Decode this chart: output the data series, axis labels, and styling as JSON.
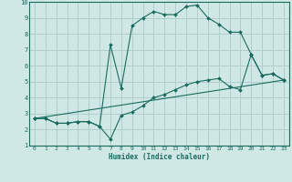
{
  "xlabel": "Humidex (Indice chaleur)",
  "xlim": [
    -0.5,
    23.5
  ],
  "ylim": [
    1,
    10
  ],
  "xticks": [
    0,
    1,
    2,
    3,
    4,
    5,
    6,
    7,
    8,
    9,
    10,
    11,
    12,
    13,
    14,
    15,
    16,
    17,
    18,
    19,
    20,
    21,
    22,
    23
  ],
  "yticks": [
    1,
    2,
    3,
    4,
    5,
    6,
    7,
    8,
    9,
    10
  ],
  "bg_color": "#cfe8e5",
  "grid_color": "#b0cfcc",
  "line_color": "#1a6b5e",
  "line1_x": [
    0,
    1,
    2,
    3,
    4,
    5,
    6,
    7,
    8,
    9,
    10,
    11,
    12,
    13,
    14,
    15,
    16,
    17,
    18,
    19,
    20,
    21,
    22,
    23
  ],
  "line1_y": [
    2.7,
    2.7,
    2.4,
    2.4,
    2.5,
    2.5,
    2.2,
    7.3,
    4.6,
    8.5,
    9.0,
    9.4,
    9.2,
    9.2,
    9.7,
    9.8,
    9.0,
    8.6,
    8.1,
    8.1,
    6.7,
    5.4,
    5.5,
    5.1
  ],
  "line2_x": [
    0,
    23
  ],
  "line2_y": [
    2.7,
    5.1
  ],
  "line3_x": [
    0,
    1,
    2,
    3,
    4,
    5,
    6,
    7,
    8,
    9,
    10,
    11,
    12,
    13,
    14,
    15,
    16,
    17,
    18,
    19,
    20,
    21,
    22,
    23
  ],
  "line3_y": [
    2.7,
    2.7,
    2.4,
    2.4,
    2.5,
    2.5,
    2.2,
    1.4,
    2.9,
    3.1,
    3.5,
    4.0,
    4.2,
    4.5,
    4.8,
    5.0,
    5.1,
    5.2,
    4.7,
    4.5,
    6.7,
    5.4,
    5.5,
    5.1
  ]
}
